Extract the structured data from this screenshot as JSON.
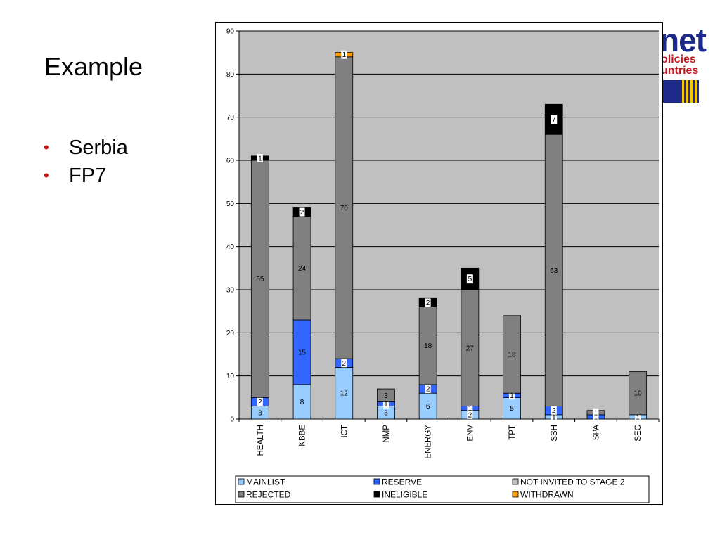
{
  "slide": {
    "title": "Example",
    "bullets": [
      "Serbia",
      "FP7"
    ]
  },
  "logo": {
    "word": "net",
    "line1": "olicies",
    "line2": "untries"
  },
  "colors": {
    "plot_bg": "#c0c0c0",
    "MAINLIST": "#99ccff",
    "RESERVE": "#3366ff",
    "NOT INVITED TO STAGE 2": "#c0c0c0",
    "REJECTED": "#808080",
    "INELIGIBLE": "#000000",
    "WITHDRAWN": "#ff9900",
    "bullet": "#cc0000"
  },
  "chart_data": {
    "type": "bar",
    "stacked": true,
    "title": "",
    "xlabel": "",
    "ylabel": "",
    "ylim": [
      0,
      90
    ],
    "yticks": [
      0,
      10,
      20,
      30,
      40,
      50,
      60,
      70,
      80,
      90
    ],
    "grid": true,
    "legend_position": "bottom",
    "categories": [
      "HEALTH",
      "KBBE",
      "ICT",
      "NMP",
      "ENERGY",
      "ENV",
      "TPT",
      "SSH",
      "SPA",
      "SEC"
    ],
    "series": [
      {
        "name": "MAINLIST",
        "values": [
          3,
          8,
          12,
          3,
          6,
          2,
          5,
          1,
          0,
          1
        ]
      },
      {
        "name": "RESERVE",
        "values": [
          2,
          15,
          2,
          1,
          2,
          1,
          1,
          2,
          1,
          0
        ]
      },
      {
        "name": "NOT INVITED TO STAGE 2",
        "values": [
          0,
          0,
          0,
          0,
          0,
          0,
          0,
          0,
          0,
          0
        ]
      },
      {
        "name": "REJECTED",
        "values": [
          55,
          24,
          70,
          3,
          18,
          27,
          18,
          63,
          1,
          10
        ]
      },
      {
        "name": "INELIGIBLE",
        "values": [
          1,
          2,
          0,
          0,
          2,
          5,
          0,
          7,
          0,
          0
        ]
      },
      {
        "name": "WITHDRAWN",
        "values": [
          0,
          0,
          1,
          0,
          0,
          0,
          0,
          0,
          0,
          0
        ]
      }
    ],
    "legend_order": [
      "MAINLIST",
      "RESERVE",
      "NOT INVITED TO STAGE 2",
      "REJECTED",
      "INELIGIBLE",
      "WITHDRAWN"
    ]
  }
}
